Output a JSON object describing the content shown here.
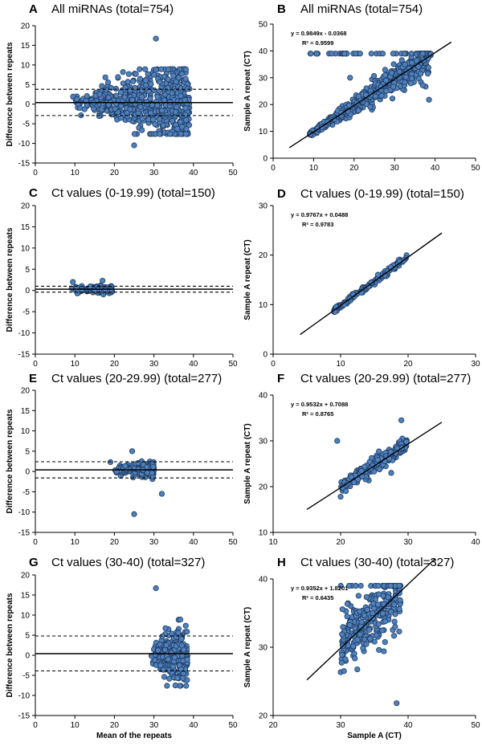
{
  "chart_data": [
    {
      "id": "A",
      "type": "scatter",
      "plot": "bland-altman",
      "panel_label": "A",
      "title": "All miRNAs (total=754)",
      "xlabel": "",
      "ylabel": "Difference between repeats",
      "xlim": [
        0,
        50
      ],
      "ylim": [
        -15,
        20
      ],
      "xticks": [
        0,
        10,
        20,
        30,
        40,
        50
      ],
      "yticks": [
        -15,
        -10,
        -5,
        0,
        5,
        10,
        15,
        20
      ],
      "mean_line": 0.4,
      "limit_lines": [
        3.8,
        -2.9
      ],
      "outliers": [
        [
          30.5,
          16.7
        ],
        [
          25,
          -10.5
        ]
      ],
      "n_points": 600,
      "x_range": [
        9,
        39
      ],
      "spread_base": 0.5,
      "spread_growth": 0.21
    },
    {
      "id": "B",
      "type": "scatter",
      "plot": "correlation",
      "panel_label": "B",
      "title": "All miRNAs (total=754)",
      "xlabel": "",
      "ylabel": "Sample A repeat (CT)",
      "xlim": [
        0,
        50
      ],
      "ylim": [
        0,
        50
      ],
      "xticks": [
        0,
        10,
        20,
        30,
        40,
        50
      ],
      "yticks": [
        0,
        10,
        20,
        30,
        40,
        50
      ],
      "equation": "y = 0.9849x - 0.0368",
      "r2": "R² = 0.9599",
      "slope": 0.9849,
      "intercept": -0.0368,
      "fit_x": [
        4,
        44
      ],
      "n_points": 600,
      "x_range": [
        9,
        39
      ],
      "spread_base": 0.3,
      "spread_growth": 0.12,
      "cap": 39,
      "outliers": [
        [
          19,
          30
        ],
        [
          38.5,
          21.8
        ]
      ]
    },
    {
      "id": "C",
      "type": "scatter",
      "plot": "bland-altman",
      "panel_label": "C",
      "title": "Ct values (0-19.99) (total=150)",
      "xlabel": "",
      "ylabel": "Difference between repeats",
      "xlim": [
        0,
        50
      ],
      "ylim": [
        -15,
        20
      ],
      "xticks": [
        0,
        10,
        20,
        30,
        40,
        50
      ],
      "yticks": [
        -15,
        -10,
        -5,
        0,
        5,
        10,
        15,
        20
      ],
      "mean_line": 0.3,
      "limit_lines": [
        1.0,
        -0.4
      ],
      "outliers": [
        [
          9.5,
          2.0
        ],
        [
          17,
          2.3
        ]
      ],
      "n_points": 140,
      "x_range": [
        9,
        19.5
      ],
      "spread_base": 0.3,
      "spread_growth": 0.02
    },
    {
      "id": "D",
      "type": "scatter",
      "plot": "correlation",
      "panel_label": "D",
      "title": "Ct values (0-19.99) (total=150)",
      "xlabel": "",
      "ylabel": "Sample A repeat (CT)",
      "xlim": [
        0,
        30
      ],
      "ylim": [
        0,
        30
      ],
      "xticks": [
        0,
        10,
        20,
        30
      ],
      "yticks": [
        0,
        10,
        20,
        30
      ],
      "equation": "y = 0.9767x + 0.0488",
      "r2": "R² = 0.9783",
      "slope": 0.9767,
      "intercept": 0.0488,
      "fit_x": [
        4,
        25
      ],
      "n_points": 140,
      "x_range": [
        9,
        19.8
      ],
      "spread_base": 0.3,
      "spread_growth": 0.0,
      "outliers": []
    },
    {
      "id": "E",
      "type": "scatter",
      "plot": "bland-altman",
      "panel_label": "E",
      "title": "Ct values (20-29.99) (total=277)",
      "xlabel": "",
      "ylabel": "Difference between repeats",
      "xlim": [
        0,
        50
      ],
      "ylim": [
        -15,
        20
      ],
      "xticks": [
        0,
        10,
        20,
        30,
        40,
        50
      ],
      "yticks": [
        -15,
        -10,
        -5,
        0,
        5,
        10,
        15,
        20
      ],
      "mean_line": 0.4,
      "limit_lines": [
        2.4,
        -1.6
      ],
      "outliers": [
        [
          25,
          -10.5
        ],
        [
          32,
          -5.5
        ],
        [
          19,
          2.3
        ],
        [
          24.5,
          5
        ]
      ],
      "n_points": 250,
      "x_range": [
        20,
        30
      ],
      "spread_base": 0.6,
      "spread_growth": 0.05
    },
    {
      "id": "F",
      "type": "scatter",
      "plot": "correlation",
      "panel_label": "F",
      "title": "Ct values (20-29.99) (total=277)",
      "xlabel": "",
      "ylabel": "Sample A repeat (CT)",
      "xlim": [
        10,
        40
      ],
      "ylim": [
        10,
        40
      ],
      "xticks": [
        10,
        20,
        30,
        40
      ],
      "yticks": [
        10,
        20,
        30,
        40
      ],
      "equation": "y = 0.9532x + 0.7088",
      "r2": "R² = 0.8765",
      "slope": 0.9532,
      "intercept": 0.7088,
      "fit_x": [
        15,
        35
      ],
      "n_points": 250,
      "x_range": [
        20,
        29.9
      ],
      "spread_base": 0.8,
      "spread_growth": 0.0,
      "outliers": [
        [
          19.5,
          30
        ],
        [
          29,
          34.5
        ],
        [
          20,
          17.8
        ],
        [
          27.5,
          23
        ]
      ]
    },
    {
      "id": "G",
      "type": "scatter",
      "plot": "bland-altman",
      "panel_label": "G",
      "title": "Ct values (30-40) (total=327)",
      "xlabel": "Mean of the repeats",
      "ylabel": "Difference between repeats",
      "xlim": [
        0,
        50
      ],
      "ylim": [
        -15,
        20
      ],
      "xticks": [
        0,
        10,
        20,
        30,
        40,
        50
      ],
      "yticks": [
        -15,
        -10,
        -5,
        0,
        5,
        10,
        15,
        20
      ],
      "mean_line": 0.4,
      "limit_lines": [
        4.8,
        -3.9
      ],
      "outliers": [
        [
          30.5,
          16.7
        ]
      ],
      "n_points": 300,
      "x_range": [
        29,
        38.5
      ],
      "spread_base": 1.2,
      "spread_growth": 0.35
    },
    {
      "id": "H",
      "type": "scatter",
      "plot": "correlation",
      "panel_label": "H",
      "title": "Ct values (30-40) (total=327)",
      "xlabel": "Sample A (CT)",
      "ylabel": "Sample A repeat (CT)",
      "xlim": [
        20,
        50
      ],
      "ylim": [
        20,
        40
      ],
      "xticks": [
        20,
        30,
        40,
        50
      ],
      "yticks": [
        20,
        30,
        40
      ],
      "equation": "y = 0.9352x + 1.8201",
      "r2": "R² = 0.6435",
      "slope": 0.9352,
      "intercept": 1.8201,
      "fit_x": [
        25,
        44
      ],
      "n_points": 300,
      "x_range": [
        30,
        38.9
      ],
      "spread_base": 1.8,
      "spread_growth": 0.1,
      "cap": 39,
      "outliers": [
        [
          38.3,
          21.8
        ],
        [
          30.5,
          26.5
        ]
      ]
    }
  ]
}
